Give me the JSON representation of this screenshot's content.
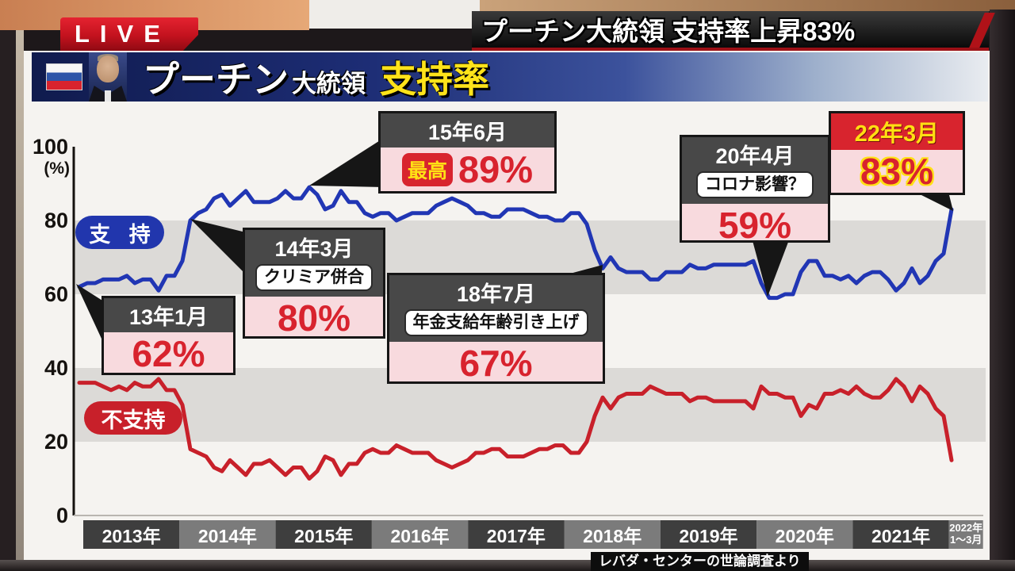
{
  "live_badge": {
    "label": "LIVE"
  },
  "headline": {
    "text": "プーチン大統領 支持率上昇83%"
  },
  "banner": {
    "main": "プーチン",
    "sub": "大統領",
    "accent": "支持率"
  },
  "legend": {
    "approve": "支 持",
    "disapprove": "不支持"
  },
  "callouts": {
    "c13": {
      "date": "13年1月",
      "value": "62%"
    },
    "c14": {
      "date": "14年3月",
      "note": "クリミア併合",
      "value": "80%"
    },
    "c15": {
      "date": "15年6月",
      "badge": "最高",
      "value": "89%"
    },
    "c18": {
      "date": "18年7月",
      "note": "年金支給年齢引き上げ",
      "value": "67%"
    },
    "c20": {
      "date": "20年4月",
      "note": "コロナ影響？",
      "value": "59%"
    },
    "c22": {
      "date": "22年3月",
      "value": "83%"
    }
  },
  "source": "レバダ・センターの世論調査より",
  "chart_data": {
    "type": "line",
    "title": "プーチン大統領 支持率",
    "ylabel": "(%)",
    "ylim": [
      0,
      100
    ],
    "yticks": [
      100,
      80,
      60,
      40,
      20,
      0
    ],
    "x_years": [
      "2013年",
      "2014年",
      "2015年",
      "2016年",
      "2017年",
      "2018年",
      "2019年",
      "2020年",
      "2021年",
      "2022年|1〜3月"
    ],
    "x_unit": "monthly, 2013-01 to 2022-03",
    "grid": "alternating gray bands 60-80 and 20-40",
    "legend_position": "on-chart",
    "series": [
      {
        "name": "支持",
        "color": "#2136b4",
        "values": [
          62,
          63,
          63,
          64,
          64,
          64,
          65,
          63,
          64,
          64,
          61,
          65,
          65,
          69,
          80,
          82,
          83,
          86,
          87,
          84,
          86,
          88,
          85,
          85,
          85,
          86,
          88,
          86,
          86,
          89,
          87,
          83,
          84,
          88,
          85,
          85,
          82,
          81,
          82,
          82,
          80,
          81,
          82,
          82,
          82,
          84,
          85,
          86,
          85,
          84,
          82,
          82,
          81,
          81,
          83,
          83,
          83,
          82,
          81,
          81,
          80,
          80,
          82,
          82,
          79,
          72,
          67,
          70,
          67,
          66,
          66,
          66,
          64,
          64,
          66,
          66,
          66,
          68,
          67,
          67,
          68,
          68,
          68,
          68,
          68,
          69,
          63,
          59,
          59,
          60,
          60,
          66,
          69,
          69,
          65,
          65,
          64,
          65,
          63,
          65,
          66,
          66,
          64,
          61,
          63,
          67,
          63,
          65,
          69,
          71,
          83
        ]
      },
      {
        "name": "不支持",
        "color": "#c8202a",
        "values": [
          36,
          36,
          36,
          35,
          34,
          35,
          34,
          36,
          35,
          35,
          37,
          34,
          34,
          30,
          18,
          17,
          16,
          13,
          12,
          15,
          13,
          11,
          14,
          14,
          15,
          13,
          11,
          13,
          13,
          10,
          12,
          16,
          15,
          11,
          14,
          14,
          17,
          18,
          17,
          17,
          19,
          18,
          17,
          17,
          17,
          15,
          14,
          13,
          14,
          15,
          17,
          17,
          18,
          18,
          16,
          16,
          16,
          17,
          18,
          18,
          19,
          19,
          17,
          17,
          20,
          27,
          32,
          29,
          32,
          33,
          33,
          33,
          35,
          34,
          33,
          33,
          33,
          31,
          32,
          32,
          31,
          31,
          31,
          31,
          31,
          29,
          35,
          33,
          33,
          32,
          32,
          27,
          30,
          29,
          33,
          33,
          34,
          33,
          35,
          33,
          32,
          32,
          34,
          37,
          35,
          31,
          35,
          33,
          29,
          27,
          15
        ]
      }
    ],
    "annotations": [
      {
        "x": "2013-01",
        "series": "支持",
        "label": "13年1月",
        "value": 62
      },
      {
        "x": "2014-03",
        "series": "支持",
        "label": "14年3月 クリミア併合",
        "value": 80
      },
      {
        "x": "2015-06",
        "series": "支持",
        "label": "15年6月 最高",
        "value": 89
      },
      {
        "x": "2018-07",
        "series": "支持",
        "label": "18年7月 年金支給年齢引き上げ",
        "value": 67
      },
      {
        "x": "2020-04",
        "series": "支持",
        "label": "20年4月 コロナ影響？",
        "value": 59
      },
      {
        "x": "2022-03",
        "series": "支持",
        "label": "22年3月",
        "value": 83
      }
    ],
    "source": "レバダ・センターの世論調査より"
  }
}
